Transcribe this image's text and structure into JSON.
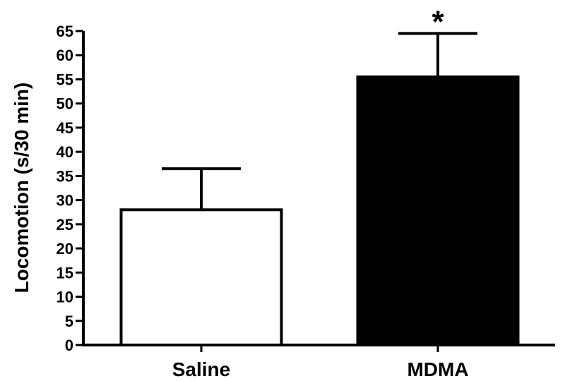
{
  "chart_data": {
    "type": "bar",
    "categories": [
      "Saline",
      "MDMA"
    ],
    "values": [
      28,
      55.5
    ],
    "error_upper": [
      36.5,
      64.5
    ],
    "bar_fill": [
      "#ffffff",
      "#000000"
    ],
    "annotations": [
      {
        "category": "MDMA",
        "text": "*"
      }
    ],
    "xlabel": "",
    "ylabel": "Locomotion (s/30 min)",
    "ylim": [
      0,
      65
    ],
    "yticks": [
      0,
      5,
      10,
      15,
      20,
      25,
      30,
      35,
      40,
      45,
      50,
      55,
      60,
      65
    ],
    "grid": false
  }
}
